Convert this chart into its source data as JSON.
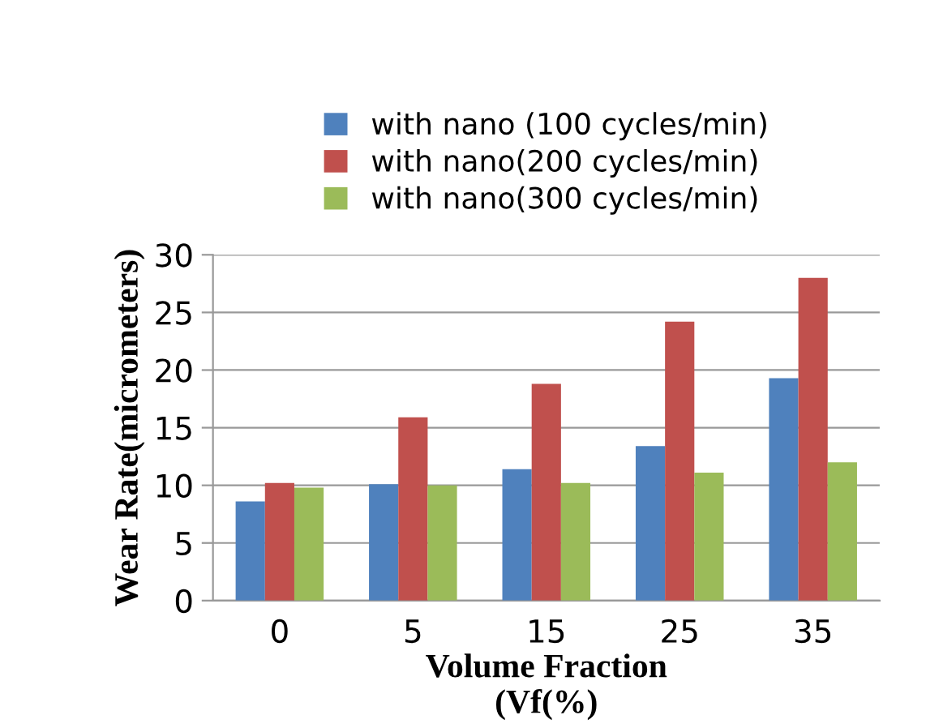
{
  "chart_data": {
    "type": "bar",
    "xlabel": "Volume Fraction\n(Vf(%)",
    "ylabel": "Wear Rate(micrometers)",
    "categories": [
      "0",
      "5",
      "15",
      "25",
      "35"
    ],
    "series": [
      {
        "name": "with nano (100 cycles/min)",
        "color": "#4f81bd",
        "values": [
          8.6,
          10.1,
          11.4,
          13.4,
          19.3
        ]
      },
      {
        "name": "with nano(200 cycles/min)",
        "color": "#c0504d",
        "values": [
          10.2,
          15.9,
          18.8,
          24.2,
          28
        ]
      },
      {
        "name": "with nano(300 cycles/min)",
        "color": "#9bbb59",
        "values": [
          9.8,
          10,
          10.2,
          11.1,
          12
        ]
      }
    ],
    "ylim": [
      0,
      30
    ],
    "yticks": [
      0,
      5,
      10,
      15,
      20,
      25,
      30
    ],
    "grid": "y",
    "legend": "top"
  }
}
